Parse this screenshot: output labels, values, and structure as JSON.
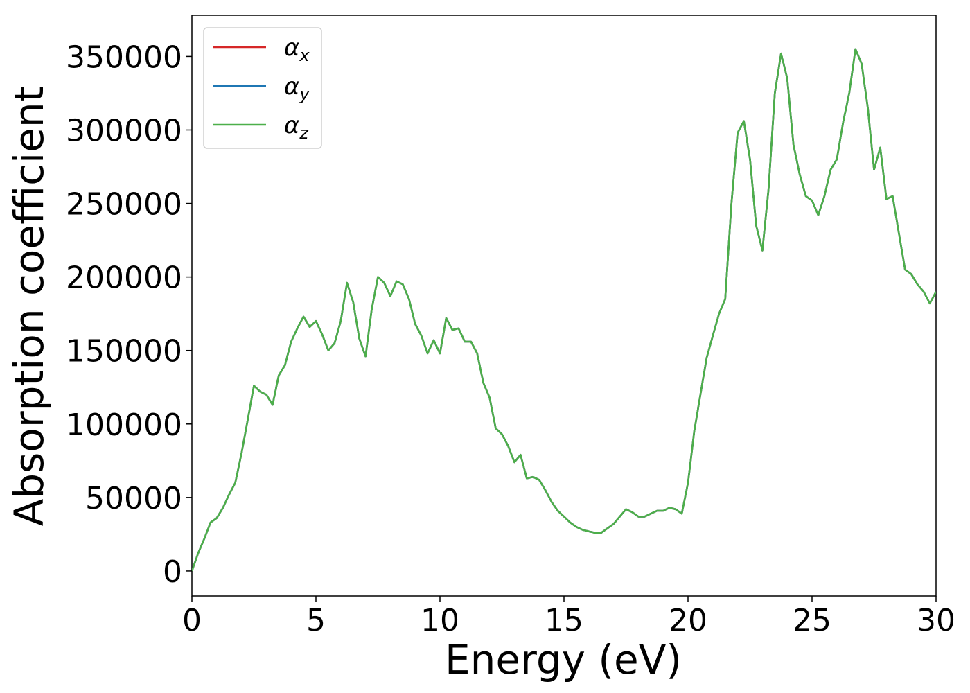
{
  "chart_data": {
    "type": "line",
    "title": "",
    "xlabel": "Energy (eV)",
    "ylabel": "Absorption coefficient",
    "xlim": [
      0,
      30
    ],
    "ylim": [
      -17000,
      378000
    ],
    "xticks": [
      0,
      5,
      10,
      15,
      20,
      25,
      30
    ],
    "yticks": [
      0,
      50000,
      100000,
      150000,
      200000,
      250000,
      300000,
      350000
    ],
    "grid": false,
    "legend_position": "top-left",
    "colors": {
      "alpha_x": "#d62728",
      "alpha_y": "#1f77b4",
      "alpha_z": "#4daf4a"
    },
    "legend": [
      {
        "base": "α",
        "sub": "x",
        "color": "#d62728"
      },
      {
        "base": "α",
        "sub": "y",
        "color": "#1f77b4"
      },
      {
        "base": "α",
        "sub": "z",
        "color": "#4daf4a"
      }
    ],
    "x": [
      0,
      0.25,
      0.5,
      0.75,
      1.0,
      1.25,
      1.5,
      1.75,
      2.0,
      2.25,
      2.5,
      2.75,
      3.0,
      3.25,
      3.5,
      3.75,
      4.0,
      4.25,
      4.5,
      4.75,
      5.0,
      5.25,
      5.5,
      5.75,
      6.0,
      6.25,
      6.5,
      6.75,
      7.0,
      7.25,
      7.5,
      7.75,
      8.0,
      8.25,
      8.5,
      8.75,
      9.0,
      9.25,
      9.5,
      9.75,
      10.0,
      10.25,
      10.5,
      10.75,
      11.0,
      11.25,
      11.5,
      11.75,
      12.0,
      12.25,
      12.5,
      12.75,
      13.0,
      13.25,
      13.5,
      13.75,
      14.0,
      14.25,
      14.5,
      14.75,
      15.0,
      15.25,
      15.5,
      15.75,
      16.0,
      16.25,
      16.5,
      16.75,
      17.0,
      17.25,
      17.5,
      17.75,
      18.0,
      18.25,
      18.5,
      18.75,
      19.0,
      19.25,
      19.5,
      19.75,
      20.0,
      20.25,
      20.5,
      20.75,
      21.0,
      21.25,
      21.5,
      21.75,
      22.0,
      22.25,
      22.5,
      22.75,
      23.0,
      23.25,
      23.5,
      23.75,
      24.0,
      24.25,
      24.5,
      24.75,
      25.0,
      25.25,
      25.5,
      25.75,
      26.0,
      26.25,
      26.5,
      26.75,
      27.0,
      27.25,
      27.5,
      27.75,
      28.0,
      28.25,
      28.5,
      28.75,
      29.0,
      29.25,
      29.5,
      29.75,
      30.0
    ],
    "series": [
      {
        "name": "α_x",
        "values": [
          0,
          12000,
          22000,
          33000,
          36000,
          43000,
          52000,
          60000,
          80000,
          103000,
          126000,
          122000,
          120000,
          113000,
          133000,
          140000,
          156000,
          165000,
          173000,
          166000,
          170000,
          161000,
          150000,
          155000,
          170000,
          196000,
          183000,
          158000,
          146000,
          178000,
          200000,
          196000,
          187000,
          197000,
          195000,
          185000,
          168000,
          160000,
          148000,
          157000,
          148000,
          172000,
          164000,
          165000,
          156000,
          156000,
          148000,
          128000,
          118000,
          97000,
          93000,
          85000,
          74000,
          79000,
          63000,
          64000,
          62000,
          55000,
          47000,
          41000,
          37000,
          33000,
          30000,
          28000,
          27000,
          26000,
          26000,
          29000,
          32000,
          37000,
          42000,
          40000,
          37000,
          37000,
          39000,
          41000,
          41000,
          43000,
          42000,
          39000,
          60000,
          95000,
          120000,
          145000,
          160000,
          175000,
          185000,
          250000,
          298000,
          306000,
          280000,
          235000,
          218000,
          260000,
          325000,
          352000,
          335000,
          290000,
          270000,
          255000,
          252000,
          242000,
          255000,
          273000,
          280000,
          305000,
          325000,
          355000,
          345000,
          315000,
          273000,
          288000,
          253000,
          255000,
          230000,
          205000,
          202000,
          195000,
          190000,
          182000,
          190000
        ]
      },
      {
        "name": "α_y",
        "values": [
          0,
          12000,
          22000,
          33000,
          36000,
          43000,
          52000,
          60000,
          80000,
          103000,
          126000,
          122000,
          120000,
          113000,
          133000,
          140000,
          156000,
          165000,
          173000,
          166000,
          170000,
          161000,
          150000,
          155000,
          170000,
          196000,
          183000,
          158000,
          146000,
          178000,
          200000,
          196000,
          187000,
          197000,
          195000,
          185000,
          168000,
          160000,
          148000,
          157000,
          148000,
          172000,
          164000,
          165000,
          156000,
          156000,
          148000,
          128000,
          118000,
          97000,
          93000,
          85000,
          74000,
          79000,
          63000,
          64000,
          62000,
          55000,
          47000,
          41000,
          37000,
          33000,
          30000,
          28000,
          27000,
          26000,
          26000,
          29000,
          32000,
          37000,
          42000,
          40000,
          37000,
          37000,
          39000,
          41000,
          41000,
          43000,
          42000,
          39000,
          60000,
          95000,
          120000,
          145000,
          160000,
          175000,
          185000,
          250000,
          298000,
          306000,
          280000,
          235000,
          218000,
          260000,
          325000,
          352000,
          335000,
          290000,
          270000,
          255000,
          252000,
          242000,
          255000,
          273000,
          280000,
          305000,
          325000,
          355000,
          345000,
          315000,
          273000,
          288000,
          253000,
          255000,
          230000,
          205000,
          202000,
          195000,
          190000,
          182000,
          190000
        ]
      },
      {
        "name": "α_z",
        "values": [
          0,
          12000,
          22000,
          33000,
          36000,
          43000,
          52000,
          60000,
          80000,
          103000,
          126000,
          122000,
          120000,
          113000,
          133000,
          140000,
          156000,
          165000,
          173000,
          166000,
          170000,
          161000,
          150000,
          155000,
          170000,
          196000,
          183000,
          158000,
          146000,
          178000,
          200000,
          196000,
          187000,
          197000,
          195000,
          185000,
          168000,
          160000,
          148000,
          157000,
          148000,
          172000,
          164000,
          165000,
          156000,
          156000,
          148000,
          128000,
          118000,
          97000,
          93000,
          85000,
          74000,
          79000,
          63000,
          64000,
          62000,
          55000,
          47000,
          41000,
          37000,
          33000,
          30000,
          28000,
          27000,
          26000,
          26000,
          29000,
          32000,
          37000,
          42000,
          40000,
          37000,
          37000,
          39000,
          41000,
          41000,
          43000,
          42000,
          39000,
          60000,
          95000,
          120000,
          145000,
          160000,
          175000,
          185000,
          250000,
          298000,
          306000,
          280000,
          235000,
          218000,
          260000,
          325000,
          352000,
          335000,
          290000,
          270000,
          255000,
          252000,
          242000,
          255000,
          273000,
          280000,
          305000,
          325000,
          355000,
          345000,
          315000,
          273000,
          288000,
          253000,
          255000,
          230000,
          205000,
          202000,
          195000,
          190000,
          182000,
          190000
        ]
      }
    ]
  }
}
